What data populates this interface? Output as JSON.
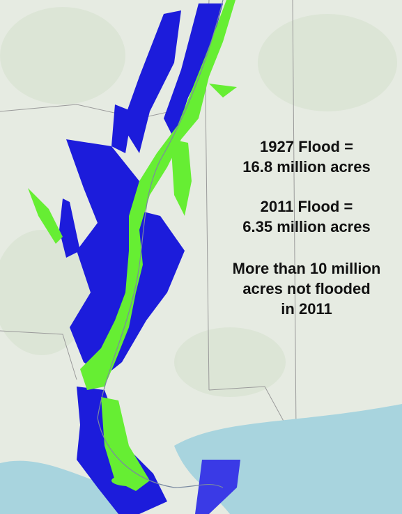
{
  "annotations": [
    {
      "lines": [
        "1927 Flood =",
        "16.8 million acres"
      ]
    },
    {
      "lines": [
        "2011 Flood =",
        "6.35 million acres"
      ]
    },
    {
      "lines": [
        "More than 10 million",
        "acres not flooded",
        "in 2011"
      ]
    }
  ]
}
